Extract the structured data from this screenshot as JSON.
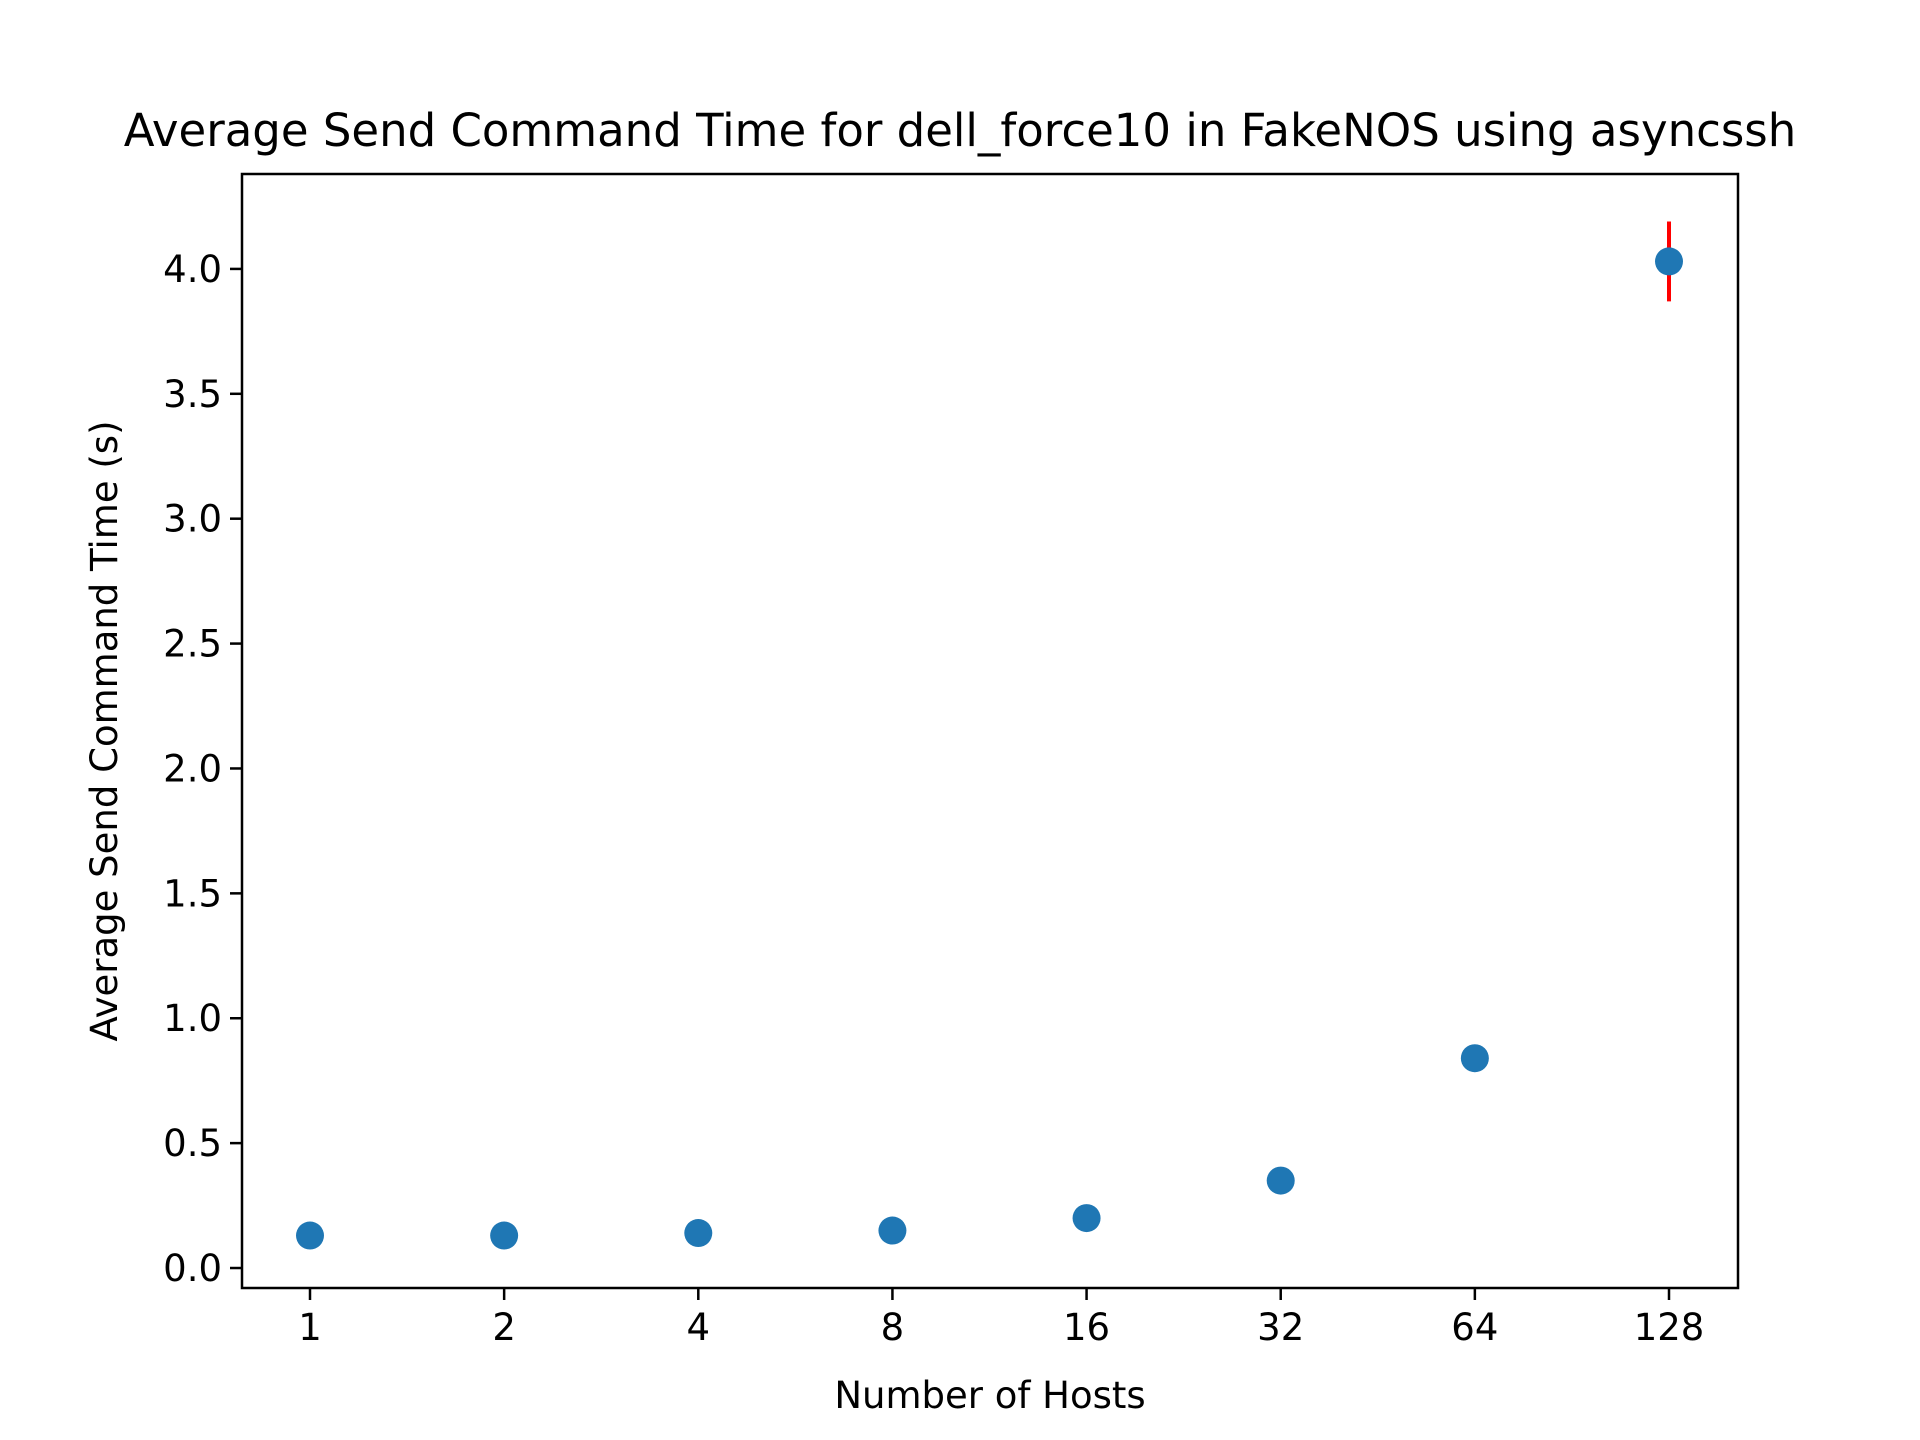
{
  "chart_data": {
    "type": "scatter",
    "title": "Average Send Command Time for dell_force10 in FakeNOS using asyncssh",
    "xlabel": "Number of Hosts",
    "ylabel": "Average Send Command Time (s)",
    "x_scale": "log2",
    "categories": [
      "1",
      "2",
      "4",
      "8",
      "16",
      "32",
      "64",
      "128"
    ],
    "x": [
      1,
      2,
      4,
      8,
      16,
      32,
      64,
      128
    ],
    "series": [
      {
        "values": [
          0.13,
          0.13,
          0.14,
          0.15,
          0.2,
          0.35,
          0.84,
          4.03
        ],
        "errors": [
          0.0,
          0.0,
          0.0,
          0.0,
          0.0,
          0.0,
          0.0,
          0.16
        ],
        "color": "#1f77b4",
        "error_color": "#ff0000"
      }
    ],
    "yticks": [
      "0.0",
      "0.5",
      "1.0",
      "1.5",
      "2.0",
      "2.5",
      "3.0",
      "3.5",
      "4.0"
    ],
    "ylim": [
      -0.08,
      4.38
    ],
    "grid": false,
    "legend": "none"
  }
}
